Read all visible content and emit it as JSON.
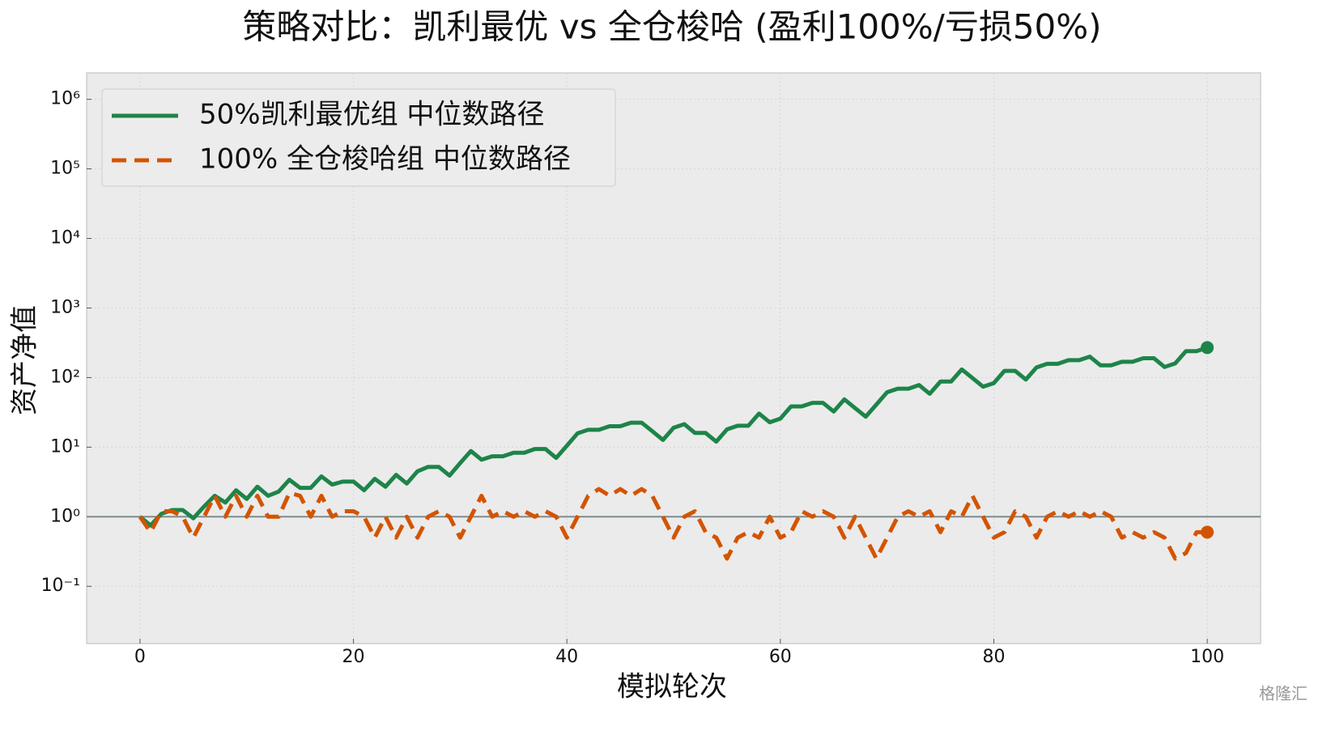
{
  "chart_data": {
    "type": "line",
    "title": "策略对比：凯利最优 vs 全仓梭哈 (盈利100%/亏损50%)",
    "xlabel": "模拟轮次",
    "ylabel": "资产净值",
    "watermark": "格隆汇",
    "x": [
      0,
      1,
      2,
      3,
      4,
      5,
      6,
      7,
      8,
      9,
      10,
      11,
      12,
      13,
      14,
      15,
      16,
      17,
      18,
      19,
      20,
      21,
      22,
      23,
      24,
      25,
      26,
      27,
      28,
      29,
      30,
      31,
      32,
      33,
      34,
      35,
      36,
      37,
      38,
      39,
      40,
      41,
      42,
      43,
      44,
      45,
      46,
      47,
      48,
      49,
      50,
      51,
      52,
      53,
      54,
      55,
      56,
      57,
      58,
      59,
      60,
      61,
      62,
      63,
      64,
      65,
      66,
      67,
      68,
      69,
      70,
      71,
      72,
      73,
      74,
      75,
      76,
      77,
      78,
      79,
      80,
      81,
      82,
      83,
      84,
      85,
      86,
      87,
      88,
      89,
      90,
      91,
      92,
      93,
      94,
      95,
      96,
      97,
      98,
      99,
      100
    ],
    "series": [
      {
        "name": "50%凯利最优组 中位数路径",
        "color": "#1e8449",
        "dash": false,
        "values": [
          1.0,
          0.75,
          1.1,
          1.25,
          1.25,
          0.95,
          1.4,
          2.0,
          1.6,
          2.4,
          1.8,
          2.7,
          2.0,
          2.3,
          3.4,
          2.6,
          2.6,
          3.8,
          2.9,
          3.2,
          3.2,
          2.4,
          3.5,
          2.7,
          4.0,
          3.0,
          4.5,
          5.2,
          5.2,
          3.9,
          5.9,
          8.8,
          6.6,
          7.4,
          7.4,
          8.3,
          8.3,
          9.4,
          9.4,
          7.0,
          10.5,
          15.8,
          17.8,
          17.8,
          20,
          20,
          22.5,
          22.5,
          17,
          12.7,
          19,
          21.4,
          16,
          16,
          12,
          18,
          20.3,
          20.3,
          30.4,
          22.8,
          25.7,
          38.5,
          38.5,
          43.3,
          43.3,
          32.5,
          48.7,
          36.5,
          27.4,
          41,
          61.6,
          69.3,
          69.3,
          78,
          58.5,
          87.7,
          87.7,
          131,
          98.7,
          74,
          83.3,
          125,
          125,
          93.7,
          140,
          158,
          158,
          178,
          178,
          200,
          150,
          150,
          169,
          169,
          190,
          190,
          142,
          160,
          240,
          240,
          270
        ]
      },
      {
        "name": "100% 全仓梭哈组 中位数路径",
        "color": "#d35400",
        "dash": true,
        "values": [
          1,
          0.6,
          1.2,
          1.2,
          1,
          0.5,
          1,
          2,
          1,
          2,
          1,
          2,
          1,
          1,
          2.2,
          2,
          1,
          2,
          1,
          1.2,
          1.2,
          1,
          0.5,
          1,
          0.5,
          1,
          0.5,
          1,
          1.2,
          1,
          0.5,
          1,
          2,
          1,
          1.2,
          1,
          1.2,
          1,
          1.2,
          1,
          0.5,
          1,
          2,
          2.5,
          2,
          2.5,
          2,
          2.5,
          2,
          1,
          0.5,
          1,
          1.2,
          0.6,
          0.5,
          0.25,
          0.5,
          0.6,
          0.5,
          1,
          0.5,
          0.6,
          1.2,
          1,
          1.2,
          1,
          0.5,
          1,
          0.5,
          0.25,
          0.5,
          1,
          1.2,
          1,
          1.2,
          0.6,
          1.2,
          1,
          2,
          1,
          0.5,
          0.6,
          1.2,
          1,
          0.5,
          1,
          1.2,
          1,
          1.2,
          1,
          1.2,
          1,
          0.5,
          0.6,
          0.5,
          0.6,
          0.5,
          0.25,
          0.3,
          0.6,
          0.6
        ]
      }
    ],
    "hline": 1,
    "hline_color": "#7f8c8d",
    "xlim": [
      -5,
      105
    ],
    "xticks": [
      0,
      20,
      40,
      60,
      80,
      100
    ],
    "ylim": [
      0.015,
      2400000
    ],
    "yticks": [
      {
        "value": 0.1,
        "label": "10⁻¹"
      },
      {
        "value": 1,
        "label": "10⁰"
      },
      {
        "value": 10,
        "label": "10¹"
      },
      {
        "value": 100,
        "label": "10²"
      },
      {
        "value": 1000,
        "label": "10³"
      },
      {
        "value": 10000,
        "label": "10⁴"
      },
      {
        "value": 100000,
        "label": "10⁵"
      },
      {
        "value": 1000000,
        "label": "10⁶"
      }
    ],
    "log_y": true,
    "grid": true,
    "legend": "upper left"
  }
}
